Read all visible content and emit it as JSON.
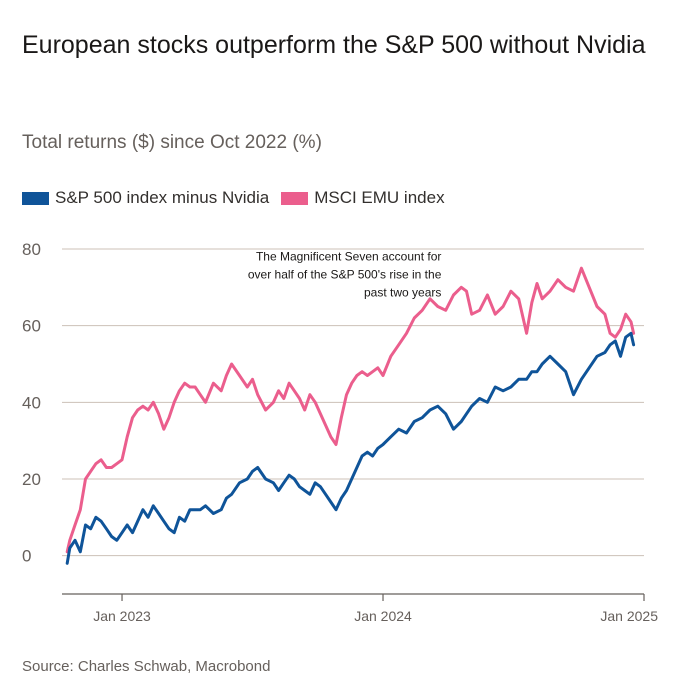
{
  "title": "European stocks outperform the S&P 500 without Nvidia",
  "subtitle": "Total returns ($) since Oct 2022 (%)",
  "source": "Source: Charles Schwab, Macrobond",
  "colors": {
    "sp500_ex_nvidia": "#0f5499",
    "msci_emu": "#eb5e8d",
    "grid": "#ccc1b7",
    "axis": "#66605c"
  },
  "chart_data": {
    "type": "line",
    "title": "European stocks outperform the S&P 500 without Nvidia",
    "ylabel": "Total returns ($) since Oct 2022 (%)",
    "xlabel": "",
    "ylim": [
      -10,
      80
    ],
    "yticks": [
      0,
      20,
      40,
      60,
      80
    ],
    "xticks": [
      {
        "label": "Jan 2023",
        "x": 2023.0
      },
      {
        "label": "Jan 2024",
        "x": 2024.0
      },
      {
        "label": "Jan 2025",
        "x": 2025.0
      }
    ],
    "xlim": [
      2022.77,
      2025.0
    ],
    "legend": "top-left",
    "annotation": {
      "lines": [
        "The Magnificent Seven account for",
        "over half of the S&P 500's rise in the",
        "past two years"
      ],
      "anchor": {
        "x": 2024.17,
        "y": 77
      }
    },
    "series": [
      {
        "name": "S&P 500 index minus Nvidia",
        "color": "#0f5499",
        "x": [
          2022.79,
          2022.8,
          2022.82,
          2022.84,
          2022.86,
          2022.88,
          2022.9,
          2022.92,
          2022.94,
          2022.96,
          2022.98,
          2023.0,
          2023.02,
          2023.04,
          2023.06,
          2023.08,
          2023.1,
          2023.12,
          2023.14,
          2023.16,
          2023.18,
          2023.2,
          2023.22,
          2023.24,
          2023.26,
          2023.28,
          2023.3,
          2023.32,
          2023.35,
          2023.38,
          2023.4,
          2023.42,
          2023.45,
          2023.48,
          2023.5,
          2023.52,
          2023.55,
          2023.58,
          2023.6,
          2023.62,
          2023.64,
          2023.66,
          2023.68,
          2023.7,
          2023.72,
          2023.74,
          2023.76,
          2023.78,
          2023.8,
          2023.82,
          2023.84,
          2023.86,
          2023.88,
          2023.9,
          2023.92,
          2023.94,
          2023.96,
          2023.98,
          2024.0,
          2024.03,
          2024.06,
          2024.09,
          2024.12,
          2024.15,
          2024.18,
          2024.21,
          2024.24,
          2024.27,
          2024.3,
          2024.32,
          2024.34,
          2024.37,
          2024.4,
          2024.43,
          2024.46,
          2024.49,
          2024.52,
          2024.55,
          2024.57,
          2024.59,
          2024.61,
          2024.64,
          2024.67,
          2024.7,
          2024.73,
          2024.76,
          2024.79,
          2024.82,
          2024.85,
          2024.87,
          2024.89,
          2024.91,
          2024.93,
          2024.95,
          2024.96
        ],
        "values": [
          -2,
          2,
          4,
          1,
          8,
          7,
          10,
          9,
          7,
          5,
          4,
          6,
          8,
          6,
          9,
          12,
          10,
          13,
          11,
          9,
          7,
          6,
          10,
          9,
          12,
          12,
          12,
          13,
          11,
          12,
          15,
          16,
          19,
          20,
          22,
          23,
          20,
          19,
          17,
          19,
          21,
          20,
          18,
          17,
          16,
          19,
          18,
          16,
          14,
          12,
          15,
          17,
          20,
          23,
          26,
          27,
          26,
          28,
          29,
          31,
          33,
          32,
          35,
          36,
          38,
          39,
          37,
          33,
          35,
          37,
          39,
          41,
          40,
          44,
          43,
          44,
          46,
          46,
          48,
          48,
          50,
          52,
          50,
          48,
          42,
          46,
          49,
          52,
          53,
          55,
          56,
          52,
          57,
          58,
          55
        ]
      },
      {
        "name": "MSCI EMU index",
        "color": "#eb5e8d",
        "x": [
          2022.79,
          2022.8,
          2022.82,
          2022.84,
          2022.86,
          2022.88,
          2022.9,
          2022.92,
          2022.94,
          2022.96,
          2022.98,
          2023.0,
          2023.02,
          2023.04,
          2023.06,
          2023.08,
          2023.1,
          2023.12,
          2023.14,
          2023.16,
          2023.18,
          2023.2,
          2023.22,
          2023.24,
          2023.26,
          2023.28,
          2023.3,
          2023.32,
          2023.35,
          2023.38,
          2023.4,
          2023.42,
          2023.45,
          2023.48,
          2023.5,
          2023.52,
          2023.55,
          2023.58,
          2023.6,
          2023.62,
          2023.64,
          2023.66,
          2023.68,
          2023.7,
          2023.72,
          2023.74,
          2023.76,
          2023.78,
          2023.8,
          2023.82,
          2023.84,
          2023.86,
          2023.88,
          2023.9,
          2023.92,
          2023.94,
          2023.96,
          2023.98,
          2024.0,
          2024.03,
          2024.06,
          2024.09,
          2024.12,
          2024.15,
          2024.18,
          2024.21,
          2024.24,
          2024.27,
          2024.3,
          2024.32,
          2024.34,
          2024.37,
          2024.4,
          2024.43,
          2024.46,
          2024.49,
          2024.52,
          2024.55,
          2024.57,
          2024.59,
          2024.61,
          2024.64,
          2024.67,
          2024.7,
          2024.73,
          2024.76,
          2024.79,
          2024.82,
          2024.85,
          2024.87,
          2024.89,
          2024.91,
          2024.93,
          2024.95,
          2024.96
        ],
        "values": [
          1,
          4,
          8,
          12,
          20,
          22,
          24,
          25,
          23,
          23,
          24,
          25,
          31,
          36,
          38,
          39,
          38,
          40,
          37,
          33,
          36,
          40,
          43,
          45,
          44,
          44,
          42,
          40,
          45,
          43,
          47,
          50,
          47,
          44,
          46,
          42,
          38,
          40,
          43,
          41,
          45,
          43,
          41,
          38,
          42,
          40,
          37,
          34,
          31,
          29,
          36,
          42,
          45,
          47,
          48,
          47,
          48,
          49,
          47,
          52,
          55,
          58,
          62,
          64,
          67,
          65,
          64,
          68,
          70,
          69,
          63,
          64,
          68,
          63,
          65,
          69,
          67,
          58,
          66,
          71,
          67,
          69,
          72,
          70,
          69,
          75,
          70,
          65,
          63,
          58,
          57,
          59,
          63,
          61,
          58
        ]
      }
    ]
  }
}
